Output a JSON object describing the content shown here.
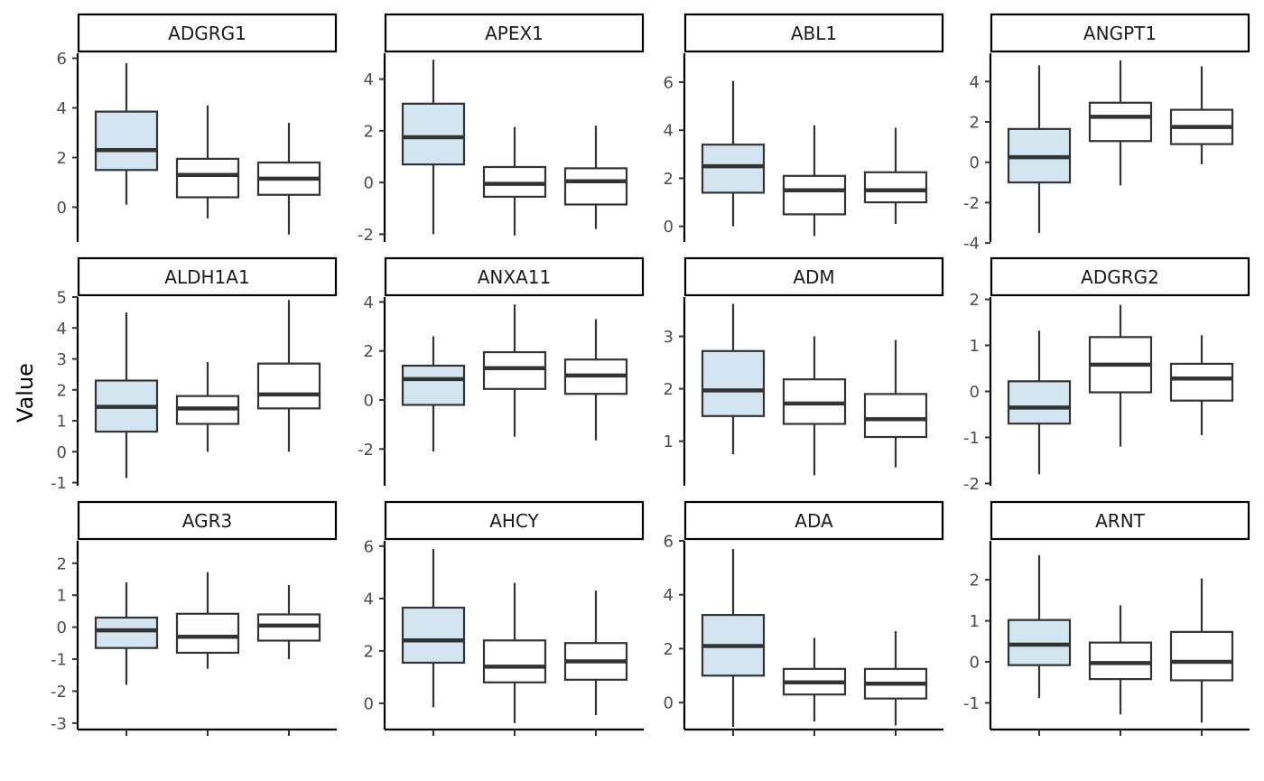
{
  "chart_data": {
    "type": "boxplot",
    "ylabel": "Value",
    "xlabel": "",
    "legend": "none",
    "grid": false,
    "colors": {
      "highlight_fill": "#d3e5f0",
      "default_fill": "#ffffff",
      "stroke": "#333333"
    },
    "panels": [
      {
        "name": "ADGRG1",
        "ylim": [
          -1.4,
          6.2
        ],
        "yticks": [
          0,
          2,
          4,
          6
        ],
        "boxes": [
          {
            "min": 0.1,
            "q1": 1.5,
            "median": 2.3,
            "q3": 3.85,
            "max": 5.8,
            "highlight": true
          },
          {
            "min": -0.45,
            "q1": 0.4,
            "median": 1.3,
            "q3": 1.95,
            "max": 4.1,
            "highlight": false
          },
          {
            "min": -1.1,
            "q1": 0.5,
            "median": 1.15,
            "q3": 1.8,
            "max": 3.4,
            "highlight": false
          }
        ]
      },
      {
        "name": "APEX1",
        "ylim": [
          -2.3,
          5.0
        ],
        "yticks": [
          -2,
          0,
          2,
          4
        ],
        "boxes": [
          {
            "min": -2.0,
            "q1": 0.7,
            "median": 1.75,
            "q3": 3.05,
            "max": 4.75,
            "highlight": true
          },
          {
            "min": -2.05,
            "q1": -0.55,
            "median": -0.05,
            "q3": 0.6,
            "max": 2.15,
            "highlight": false
          },
          {
            "min": -1.8,
            "q1": -0.85,
            "median": 0.05,
            "q3": 0.55,
            "max": 2.2,
            "highlight": false
          }
        ]
      },
      {
        "name": "ABL1",
        "ylim": [
          -0.65,
          7.2
        ],
        "yticks": [
          0,
          2,
          4,
          6
        ],
        "boxes": [
          {
            "min": 0.0,
            "q1": 1.4,
            "median": 2.5,
            "q3": 3.4,
            "max": 6.05,
            "highlight": true
          },
          {
            "min": -0.4,
            "q1": 0.5,
            "median": 1.5,
            "q3": 2.1,
            "max": 4.2,
            "highlight": false
          },
          {
            "min": 0.1,
            "q1": 1.0,
            "median": 1.5,
            "q3": 2.25,
            "max": 4.1,
            "highlight": false
          }
        ]
      },
      {
        "name": "ANGPT1",
        "ylim": [
          -3.95,
          5.4
        ],
        "yticks": [
          -4,
          -2,
          0,
          2,
          4
        ],
        "boxes": [
          {
            "min": -3.5,
            "q1": -1.0,
            "median": 0.25,
            "q3": 1.65,
            "max": 4.8,
            "highlight": true
          },
          {
            "min": -1.15,
            "q1": 1.05,
            "median": 2.25,
            "q3": 2.95,
            "max": 5.05,
            "highlight": false
          },
          {
            "min": -0.1,
            "q1": 0.9,
            "median": 1.75,
            "q3": 2.6,
            "max": 4.75,
            "highlight": false
          }
        ]
      },
      {
        "name": "ALDH1A1",
        "ylim": [
          -1.1,
          5.0
        ],
        "yticks": [
          -1,
          0,
          1,
          2,
          3,
          4,
          5
        ],
        "boxes": [
          {
            "min": -0.85,
            "q1": 0.65,
            "median": 1.45,
            "q3": 2.3,
            "max": 4.5,
            "highlight": true
          },
          {
            "min": 0.0,
            "q1": 0.9,
            "median": 1.4,
            "q3": 1.8,
            "max": 2.9,
            "highlight": false
          },
          {
            "min": 0.0,
            "q1": 1.4,
            "median": 1.85,
            "q3": 2.85,
            "max": 4.9,
            "highlight": false
          }
        ]
      },
      {
        "name": "ANXA11",
        "ylim": [
          -3.5,
          4.2
        ],
        "yticks": [
          -2,
          0,
          2,
          4
        ],
        "boxes": [
          {
            "min": -2.1,
            "q1": -0.2,
            "median": 0.85,
            "q3": 1.4,
            "max": 2.6,
            "highlight": true
          },
          {
            "min": -1.5,
            "q1": 0.45,
            "median": 1.3,
            "q3": 1.95,
            "max": 3.9,
            "highlight": false
          },
          {
            "min": -1.65,
            "q1": 0.25,
            "median": 1.0,
            "q3": 1.65,
            "max": 3.3,
            "highlight": false
          }
        ]
      },
      {
        "name": "ADM",
        "ylim": [
          0.15,
          3.75
        ],
        "yticks": [
          1,
          2,
          3
        ],
        "boxes": [
          {
            "min": 0.75,
            "q1": 1.48,
            "median": 1.97,
            "q3": 2.72,
            "max": 3.62,
            "highlight": true
          },
          {
            "min": 0.35,
            "q1": 1.33,
            "median": 1.72,
            "q3": 2.18,
            "max": 3.0,
            "highlight": false
          },
          {
            "min": 0.5,
            "q1": 1.08,
            "median": 1.42,
            "q3": 1.9,
            "max": 2.93,
            "highlight": false
          }
        ]
      },
      {
        "name": "ADGRG2",
        "ylim": [
          -2.05,
          2.05
        ],
        "yticks": [
          -2,
          -1,
          0,
          1,
          2
        ],
        "boxes": [
          {
            "min": -1.8,
            "q1": -0.7,
            "median": -0.35,
            "q3": 0.22,
            "max": 1.32,
            "highlight": true
          },
          {
            "min": -1.2,
            "q1": -0.02,
            "median": 0.58,
            "q3": 1.18,
            "max": 1.88,
            "highlight": false
          },
          {
            "min": -0.95,
            "q1": -0.2,
            "median": 0.28,
            "q3": 0.6,
            "max": 1.22,
            "highlight": false
          }
        ]
      },
      {
        "name": "AGR3",
        "ylim": [
          -3.2,
          2.7
        ],
        "yticks": [
          -3,
          -2,
          -1,
          0,
          1,
          2
        ],
        "boxes": [
          {
            "min": -1.8,
            "q1": -0.65,
            "median": -0.1,
            "q3": 0.3,
            "max": 1.4,
            "highlight": true
          },
          {
            "min": -1.3,
            "q1": -0.8,
            "median": -0.3,
            "q3": 0.42,
            "max": 1.72,
            "highlight": false
          },
          {
            "min": -1.0,
            "q1": -0.42,
            "median": 0.05,
            "q3": 0.4,
            "max": 1.32,
            "highlight": false
          }
        ]
      },
      {
        "name": "AHCY",
        "ylim": [
          -1.0,
          6.2
        ],
        "yticks": [
          0,
          2,
          4,
          6
        ],
        "boxes": [
          {
            "min": -0.15,
            "q1": 1.55,
            "median": 2.4,
            "q3": 3.65,
            "max": 5.9,
            "highlight": true
          },
          {
            "min": -0.75,
            "q1": 0.8,
            "median": 1.4,
            "q3": 2.4,
            "max": 4.6,
            "highlight": false
          },
          {
            "min": -0.45,
            "q1": 0.9,
            "median": 1.6,
            "q3": 2.3,
            "max": 4.3,
            "highlight": false
          }
        ]
      },
      {
        "name": "ADA",
        "ylim": [
          -1.0,
          6.0
        ],
        "yticks": [
          0,
          2,
          4,
          6
        ],
        "boxes": [
          {
            "min": -0.9,
            "q1": 1.0,
            "median": 2.1,
            "q3": 3.25,
            "max": 5.7,
            "highlight": true
          },
          {
            "min": -0.7,
            "q1": 0.3,
            "median": 0.75,
            "q3": 1.25,
            "max": 2.4,
            "highlight": false
          },
          {
            "min": -0.85,
            "q1": 0.15,
            "median": 0.7,
            "q3": 1.25,
            "max": 2.65,
            "highlight": false
          }
        ]
      },
      {
        "name": "ARNT",
        "ylim": [
          -1.65,
          2.95
        ],
        "yticks": [
          -1,
          0,
          1,
          2
        ],
        "boxes": [
          {
            "min": -0.88,
            "q1": -0.08,
            "median": 0.42,
            "q3": 1.02,
            "max": 2.6,
            "highlight": true
          },
          {
            "min": -1.28,
            "q1": -0.42,
            "median": -0.03,
            "q3": 0.47,
            "max": 1.38,
            "highlight": false
          },
          {
            "min": -1.48,
            "q1": -0.45,
            "median": 0.0,
            "q3": 0.73,
            "max": 2.03,
            "highlight": false
          }
        ]
      }
    ]
  }
}
